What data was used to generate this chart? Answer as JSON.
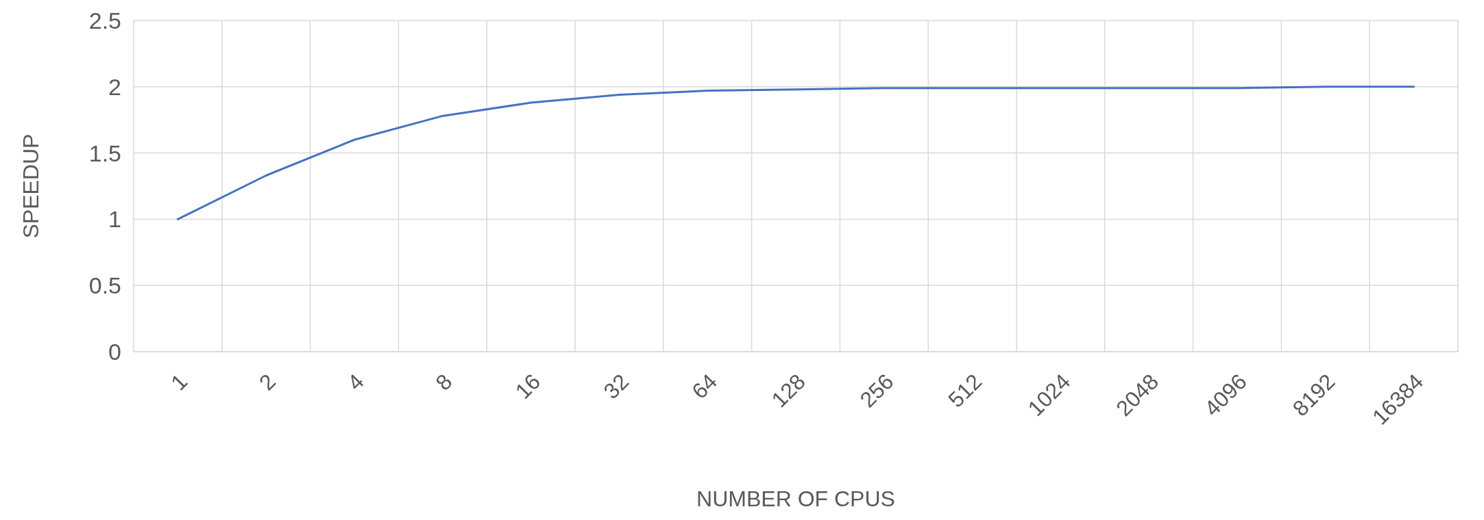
{
  "chart_data": {
    "type": "line",
    "xlabel": "NUMBER OF CPUS",
    "ylabel": "SPEEDUP",
    "categories": [
      "1",
      "2",
      "4",
      "8",
      "16",
      "32",
      "64",
      "128",
      "256",
      "512",
      "1024",
      "2048",
      "4096",
      "8192",
      "16384"
    ],
    "series": [
      {
        "color": "#4472c4",
        "values": [
          1,
          1.33,
          1.6,
          1.78,
          1.88,
          1.94,
          1.97,
          1.98,
          1.99,
          1.99,
          1.99,
          1.99,
          1.99,
          2,
          2
        ]
      }
    ],
    "ylim": [
      0,
      2.5
    ],
    "yticks": [
      0,
      0.5,
      1,
      1.5,
      2,
      2.5
    ],
    "grid": true,
    "marker": "none",
    "line_style": "solid"
  }
}
